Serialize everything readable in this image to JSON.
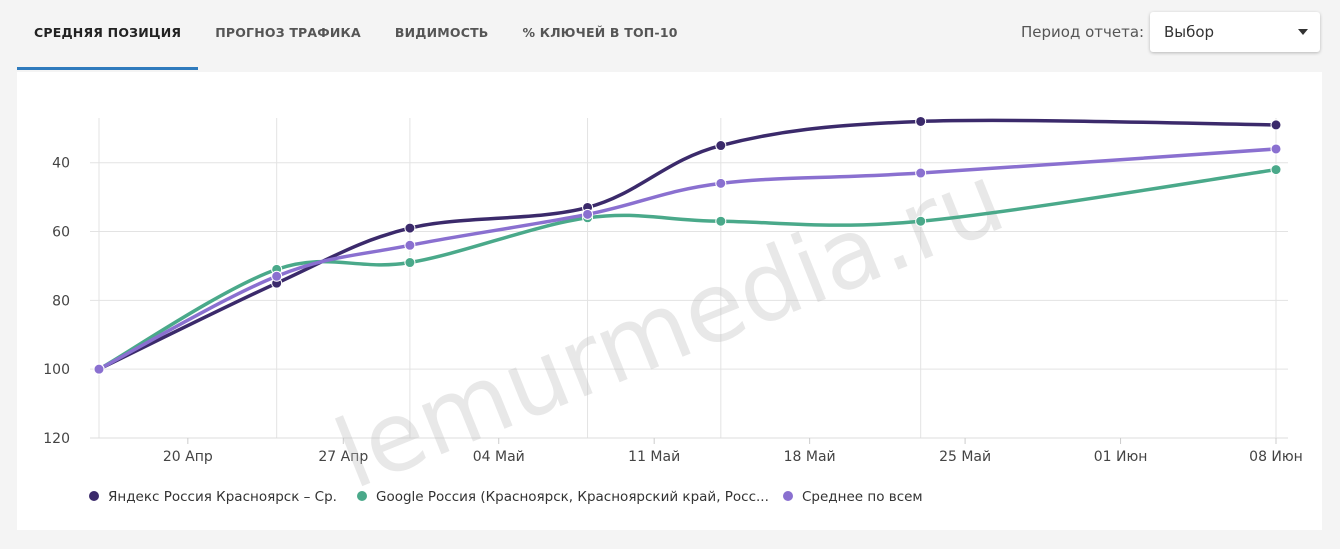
{
  "tabs": [
    "СРЕДНЯЯ ПОЗИЦИЯ",
    "ПРОГНОЗ ТРАФИКА",
    "ВИДИМОСТЬ",
    "% КЛЮЧЕЙ В ТОП-10"
  ],
  "period_label": "Период отчета:",
  "period_select": "Выбор",
  "watermark": "lemurmedia.ru",
  "chart_data": {
    "type": "line",
    "x": [
      "04-16",
      "04-24",
      "04-30",
      "05-08",
      "05-14",
      "05-23",
      "06-08"
    ],
    "xlim": [
      "04-16",
      "06-08"
    ],
    "xticks": [
      {
        "value": "04-20",
        "label": "20 Апр"
      },
      {
        "value": "04-27",
        "label": "27 Апр"
      },
      {
        "value": "05-04",
        "label": "04 Май"
      },
      {
        "value": "05-11",
        "label": "11 Май"
      },
      {
        "value": "05-18",
        "label": "18 Май"
      },
      {
        "value": "05-25",
        "label": "25 Май"
      },
      {
        "value": "06-01",
        "label": "01 Июн"
      },
      {
        "value": "06-08",
        "label": "08 Июн"
      }
    ],
    "ylim": [
      27,
      120
    ],
    "y_reversed": true,
    "yticks": [
      40,
      60,
      80,
      100,
      120
    ],
    "grid": true,
    "series": [
      {
        "name": "Яндекс Россия Красноярск – Ср.",
        "color": "#3b2a6b",
        "values": [
          100,
          75,
          59,
          53,
          35,
          28,
          29
        ]
      },
      {
        "name": "Google Россия (Красноярск, Красноярский край, Росс...",
        "color": "#4aa98a",
        "values": [
          100,
          71,
          69,
          56,
          57,
          57,
          42
        ]
      },
      {
        "name": "Среднее по всем",
        "color": "#8a70d0",
        "values": [
          100,
          73,
          64,
          55,
          46,
          43,
          36
        ]
      }
    ]
  }
}
